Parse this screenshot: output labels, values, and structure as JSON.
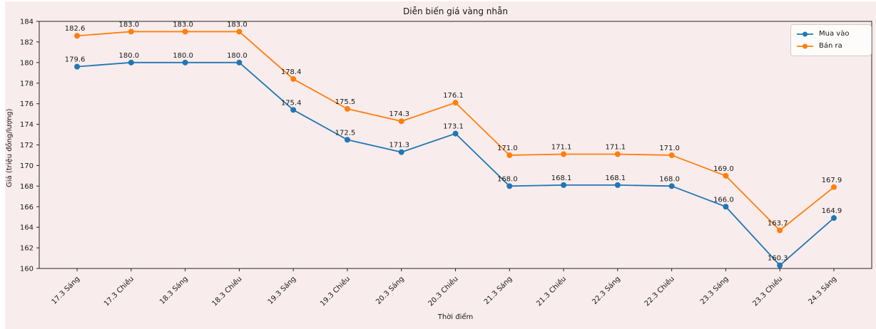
{
  "figure": {
    "background_color": "#f9ecec",
    "page_background": "#ffffff"
  },
  "chart_data": {
    "type": "line",
    "title": "Diễn biến giá vàng nhẫn",
    "xlabel": "Thời điểm",
    "ylabel": "Giá (triệu đồng/lượng)",
    "categories": [
      "17.3 Sáng",
      "17.3 Chiều",
      "18.3 Sáng",
      "18.3 Chiều",
      "19.3 Sáng",
      "19.3 Chiều",
      "20.3 Sáng",
      "20.3 Chiều",
      "21.3 Sáng",
      "21.3 Chiều",
      "22.3 Sáng",
      "22.3 Chiều",
      "23.3 Sáng",
      "23.3 Chiều",
      "24.3 Sáng"
    ],
    "series": [
      {
        "name": "Mua vào",
        "color": "#1f77b4",
        "values": [
          179.6,
          180.0,
          180.0,
          180.0,
          175.4,
          172.5,
          171.3,
          173.1,
          168.0,
          168.1,
          168.1,
          168.0,
          166.0,
          160.3,
          164.9
        ]
      },
      {
        "name": "Bán ra",
        "color": "#ff7f0e",
        "values": [
          182.6,
          183.0,
          183.0,
          183.0,
          178.4,
          175.5,
          174.3,
          176.1,
          171.0,
          171.1,
          171.1,
          171.0,
          169.0,
          163.7,
          167.9
        ]
      }
    ],
    "ylim": [
      160,
      184
    ],
    "yticks": [
      160,
      162,
      164,
      166,
      168,
      170,
      172,
      174,
      176,
      178,
      180,
      182,
      184
    ],
    "grid": false,
    "legend_position": "upper-right",
    "point_labels": "one-decimal"
  },
  "colors": {
    "spine": "#262626",
    "tick_text": "#1a1a1a",
    "point_label_text": "#1a1a1a"
  }
}
